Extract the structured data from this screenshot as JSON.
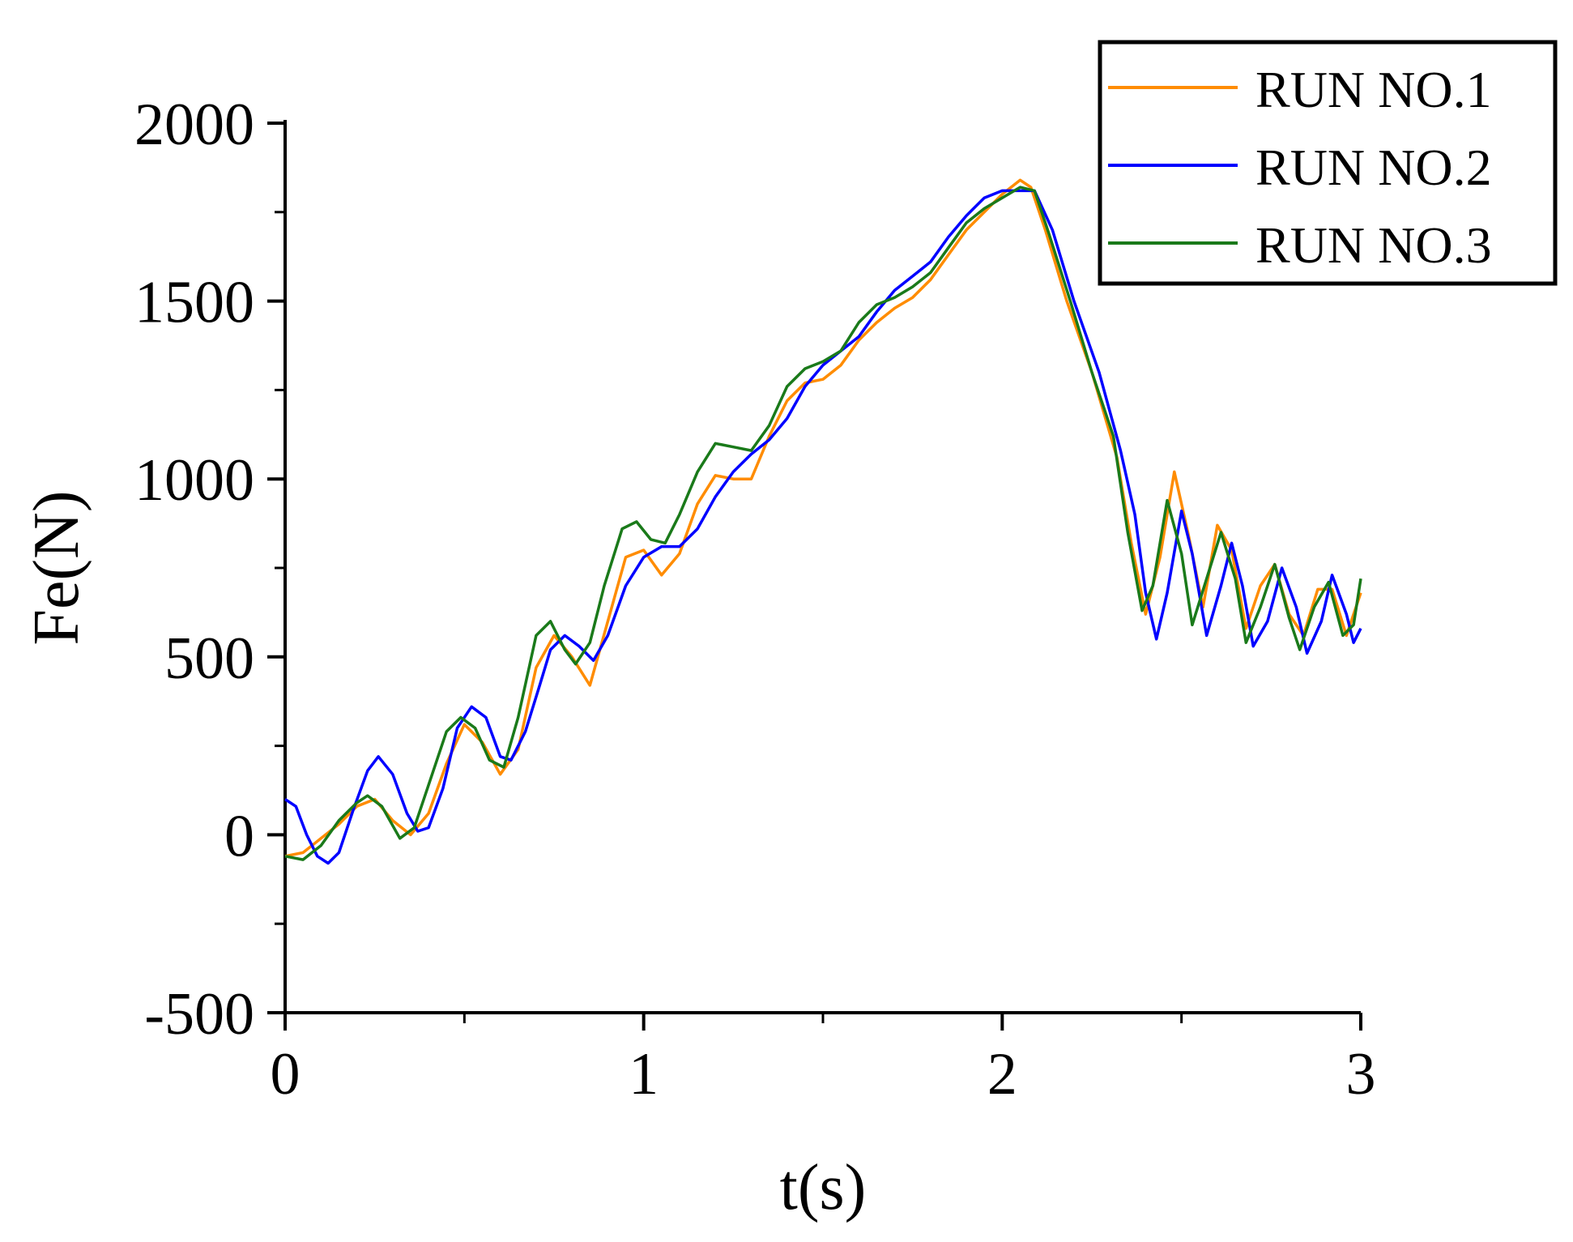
{
  "chart_data": {
    "type": "line",
    "xlabel": "t(s)",
    "ylabel": "Fe(N)",
    "xlim": [
      0,
      3
    ],
    "ylim": [
      -500,
      2000
    ],
    "xticks": [
      0,
      1,
      2,
      3
    ],
    "xtick_labels": [
      "0",
      "1",
      "2",
      "3"
    ],
    "yticks": [
      -500,
      0,
      500,
      1000,
      1500,
      2000
    ],
    "ytick_labels": [
      "-500",
      "0",
      "500",
      "1000",
      "1500",
      "2000"
    ],
    "grid": false,
    "legend_position": "top-right",
    "series": [
      {
        "name": "RUN NO.1",
        "color": "#ff8c00",
        "points": [
          [
            0.0,
            -60
          ],
          [
            0.05,
            -50
          ],
          [
            0.1,
            -10
          ],
          [
            0.15,
            30
          ],
          [
            0.2,
            80
          ],
          [
            0.25,
            100
          ],
          [
            0.3,
            40
          ],
          [
            0.35,
            0
          ],
          [
            0.4,
            60
          ],
          [
            0.45,
            200
          ],
          [
            0.5,
            310
          ],
          [
            0.55,
            260
          ],
          [
            0.6,
            170
          ],
          [
            0.65,
            240
          ],
          [
            0.7,
            470
          ],
          [
            0.75,
            560
          ],
          [
            0.8,
            500
          ],
          [
            0.85,
            420
          ],
          [
            0.9,
            600
          ],
          [
            0.95,
            780
          ],
          [
            1.0,
            800
          ],
          [
            1.05,
            730
          ],
          [
            1.1,
            790
          ],
          [
            1.15,
            930
          ],
          [
            1.2,
            1010
          ],
          [
            1.25,
            1000
          ],
          [
            1.3,
            1000
          ],
          [
            1.35,
            1120
          ],
          [
            1.4,
            1220
          ],
          [
            1.45,
            1270
          ],
          [
            1.5,
            1280
          ],
          [
            1.55,
            1320
          ],
          [
            1.6,
            1390
          ],
          [
            1.65,
            1440
          ],
          [
            1.7,
            1480
          ],
          [
            1.75,
            1510
          ],
          [
            1.8,
            1560
          ],
          [
            1.85,
            1630
          ],
          [
            1.9,
            1700
          ],
          [
            1.95,
            1750
          ],
          [
            2.0,
            1800
          ],
          [
            2.05,
            1840
          ],
          [
            2.08,
            1820
          ],
          [
            2.12,
            1700
          ],
          [
            2.18,
            1500
          ],
          [
            2.25,
            1300
          ],
          [
            2.32,
            1060
          ],
          [
            2.36,
            820
          ],
          [
            2.4,
            620
          ],
          [
            2.44,
            780
          ],
          [
            2.48,
            1020
          ],
          [
            2.52,
            840
          ],
          [
            2.56,
            640
          ],
          [
            2.6,
            870
          ],
          [
            2.64,
            800
          ],
          [
            2.68,
            580
          ],
          [
            2.72,
            700
          ],
          [
            2.76,
            760
          ],
          [
            2.8,
            620
          ],
          [
            2.84,
            560
          ],
          [
            2.88,
            690
          ],
          [
            2.92,
            690
          ],
          [
            2.96,
            560
          ],
          [
            3.0,
            680
          ]
        ]
      },
      {
        "name": "RUN NO.2",
        "color": "#0000ff",
        "points": [
          [
            0.0,
            100
          ],
          [
            0.03,
            80
          ],
          [
            0.06,
            0
          ],
          [
            0.09,
            -60
          ],
          [
            0.12,
            -80
          ],
          [
            0.15,
            -50
          ],
          [
            0.19,
            70
          ],
          [
            0.23,
            180
          ],
          [
            0.26,
            220
          ],
          [
            0.3,
            170
          ],
          [
            0.34,
            60
          ],
          [
            0.37,
            10
          ],
          [
            0.4,
            20
          ],
          [
            0.44,
            130
          ],
          [
            0.48,
            300
          ],
          [
            0.52,
            360
          ],
          [
            0.56,
            330
          ],
          [
            0.6,
            220
          ],
          [
            0.63,
            210
          ],
          [
            0.67,
            290
          ],
          [
            0.71,
            420
          ],
          [
            0.74,
            520
          ],
          [
            0.78,
            560
          ],
          [
            0.82,
            530
          ],
          [
            0.86,
            490
          ],
          [
            0.9,
            560
          ],
          [
            0.95,
            700
          ],
          [
            1.0,
            780
          ],
          [
            1.05,
            810
          ],
          [
            1.1,
            810
          ],
          [
            1.15,
            860
          ],
          [
            1.2,
            950
          ],
          [
            1.25,
            1020
          ],
          [
            1.3,
            1070
          ],
          [
            1.35,
            1110
          ],
          [
            1.4,
            1170
          ],
          [
            1.45,
            1260
          ],
          [
            1.5,
            1320
          ],
          [
            1.55,
            1360
          ],
          [
            1.6,
            1400
          ],
          [
            1.65,
            1470
          ],
          [
            1.7,
            1530
          ],
          [
            1.75,
            1570
          ],
          [
            1.8,
            1610
          ],
          [
            1.85,
            1680
          ],
          [
            1.9,
            1740
          ],
          [
            1.95,
            1790
          ],
          [
            2.0,
            1810
          ],
          [
            2.05,
            1810
          ],
          [
            2.09,
            1810
          ],
          [
            2.14,
            1700
          ],
          [
            2.2,
            1500
          ],
          [
            2.27,
            1300
          ],
          [
            2.33,
            1080
          ],
          [
            2.37,
            900
          ],
          [
            2.4,
            680
          ],
          [
            2.43,
            550
          ],
          [
            2.46,
            680
          ],
          [
            2.5,
            910
          ],
          [
            2.53,
            790
          ],
          [
            2.57,
            560
          ],
          [
            2.61,
            700
          ],
          [
            2.64,
            820
          ],
          [
            2.67,
            700
          ],
          [
            2.7,
            530
          ],
          [
            2.74,
            600
          ],
          [
            2.78,
            750
          ],
          [
            2.82,
            640
          ],
          [
            2.85,
            510
          ],
          [
            2.89,
            600
          ],
          [
            2.92,
            730
          ],
          [
            2.96,
            620
          ],
          [
            2.98,
            540
          ],
          [
            3.0,
            580
          ]
        ]
      },
      {
        "name": "RUN NO.3",
        "color": "#1a7a1a",
        "points": [
          [
            0.0,
            -60
          ],
          [
            0.05,
            -70
          ],
          [
            0.1,
            -30
          ],
          [
            0.15,
            40
          ],
          [
            0.2,
            90
          ],
          [
            0.23,
            110
          ],
          [
            0.27,
            80
          ],
          [
            0.32,
            -10
          ],
          [
            0.36,
            20
          ],
          [
            0.4,
            140
          ],
          [
            0.45,
            290
          ],
          [
            0.49,
            330
          ],
          [
            0.53,
            300
          ],
          [
            0.57,
            210
          ],
          [
            0.61,
            190
          ],
          [
            0.65,
            330
          ],
          [
            0.7,
            560
          ],
          [
            0.74,
            600
          ],
          [
            0.78,
            520
          ],
          [
            0.81,
            480
          ],
          [
            0.85,
            540
          ],
          [
            0.89,
            700
          ],
          [
            0.94,
            860
          ],
          [
            0.98,
            880
          ],
          [
            1.02,
            830
          ],
          [
            1.06,
            820
          ],
          [
            1.1,
            900
          ],
          [
            1.15,
            1020
          ],
          [
            1.2,
            1100
          ],
          [
            1.25,
            1090
          ],
          [
            1.3,
            1080
          ],
          [
            1.35,
            1150
          ],
          [
            1.4,
            1260
          ],
          [
            1.45,
            1310
          ],
          [
            1.5,
            1330
          ],
          [
            1.55,
            1360
          ],
          [
            1.6,
            1440
          ],
          [
            1.65,
            1490
          ],
          [
            1.7,
            1510
          ],
          [
            1.75,
            1540
          ],
          [
            1.8,
            1580
          ],
          [
            1.85,
            1650
          ],
          [
            1.9,
            1720
          ],
          [
            1.95,
            1760
          ],
          [
            2.0,
            1790
          ],
          [
            2.05,
            1820
          ],
          [
            2.09,
            1810
          ],
          [
            2.13,
            1690
          ],
          [
            2.19,
            1500
          ],
          [
            2.25,
            1300
          ],
          [
            2.31,
            1120
          ],
          [
            2.35,
            850
          ],
          [
            2.39,
            630
          ],
          [
            2.42,
            700
          ],
          [
            2.46,
            940
          ],
          [
            2.5,
            790
          ],
          [
            2.53,
            590
          ],
          [
            2.57,
            720
          ],
          [
            2.61,
            850
          ],
          [
            2.65,
            720
          ],
          [
            2.68,
            540
          ],
          [
            2.72,
            640
          ],
          [
            2.76,
            760
          ],
          [
            2.8,
            610
          ],
          [
            2.83,
            520
          ],
          [
            2.87,
            640
          ],
          [
            2.91,
            710
          ],
          [
            2.95,
            560
          ],
          [
            2.98,
            590
          ],
          [
            3.0,
            720
          ]
        ]
      }
    ]
  }
}
